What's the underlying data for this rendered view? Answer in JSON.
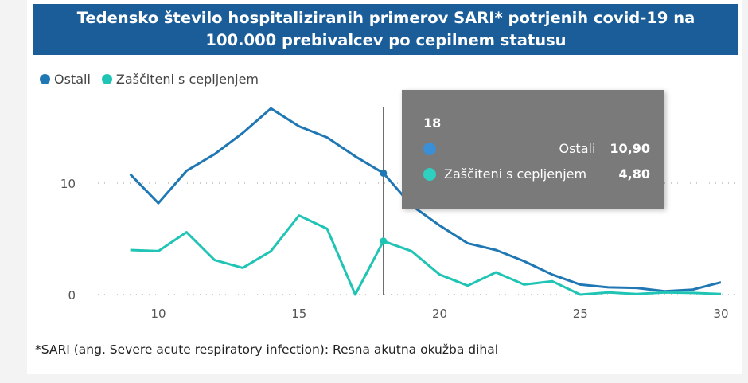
{
  "chart_data": {
    "type": "line",
    "title": "Tedensko število hospitaliziranih primerov SARI* potrjenih covid-19 na 100.000 prebivalcev po cepilnem statusu",
    "x": [
      9,
      10,
      11,
      12,
      13,
      14,
      15,
      16,
      17,
      18,
      19,
      20,
      21,
      22,
      23,
      24,
      25,
      26,
      27,
      28,
      29,
      30
    ],
    "series": [
      {
        "name": "Ostali",
        "color": "#1f77b4",
        "values": [
          10.8,
          8.2,
          11.1,
          12.6,
          14.5,
          16.7,
          15.1,
          14.1,
          12.4,
          10.9,
          8.0,
          6.2,
          4.6,
          4.0,
          3.0,
          1.8,
          0.9,
          0.65,
          0.6,
          0.3,
          0.45,
          1.1
        ]
      },
      {
        "name": "Zaščiteni s cepljenjem",
        "color": "#20c4b4",
        "values": [
          4.0,
          3.9,
          5.6,
          3.1,
          2.4,
          3.9,
          7.1,
          5.9,
          0.0,
          4.8,
          3.9,
          1.8,
          0.8,
          2.0,
          0.9,
          1.2,
          0.0,
          0.2,
          0.05,
          0.2,
          0.15,
          0.05
        ]
      }
    ],
    "x_ticks": [
      "10",
      "15",
      "20",
      "25",
      "30"
    ],
    "y_ticks": [
      "0",
      "10"
    ],
    "xlim": [
      9,
      30
    ],
    "ylim": [
      0,
      17
    ],
    "grid": "horizontal dotted",
    "legend": "top-left",
    "xlabel": "",
    "ylabel": "",
    "footnote": "*SARI (ang. Severe acute respiratory infection): Resna akutna okužba dihal"
  },
  "title_line1": "Tedensko število hospitaliziranih primerov SARI* potrjenih covid-19 na",
  "title_line2": "100.000 prebivalcev po cepilnem statusu",
  "legend": [
    "Ostali",
    "Zaščiteni s cepljenjem"
  ],
  "tooltip": {
    "header": "18",
    "rows": [
      {
        "label": "Ostali",
        "value": "10,90",
        "color": "#3a8fd6"
      },
      {
        "label": "Zaščiteni s cepljenjem",
        "value": "4,80",
        "color": "#30d0c0"
      }
    ]
  }
}
